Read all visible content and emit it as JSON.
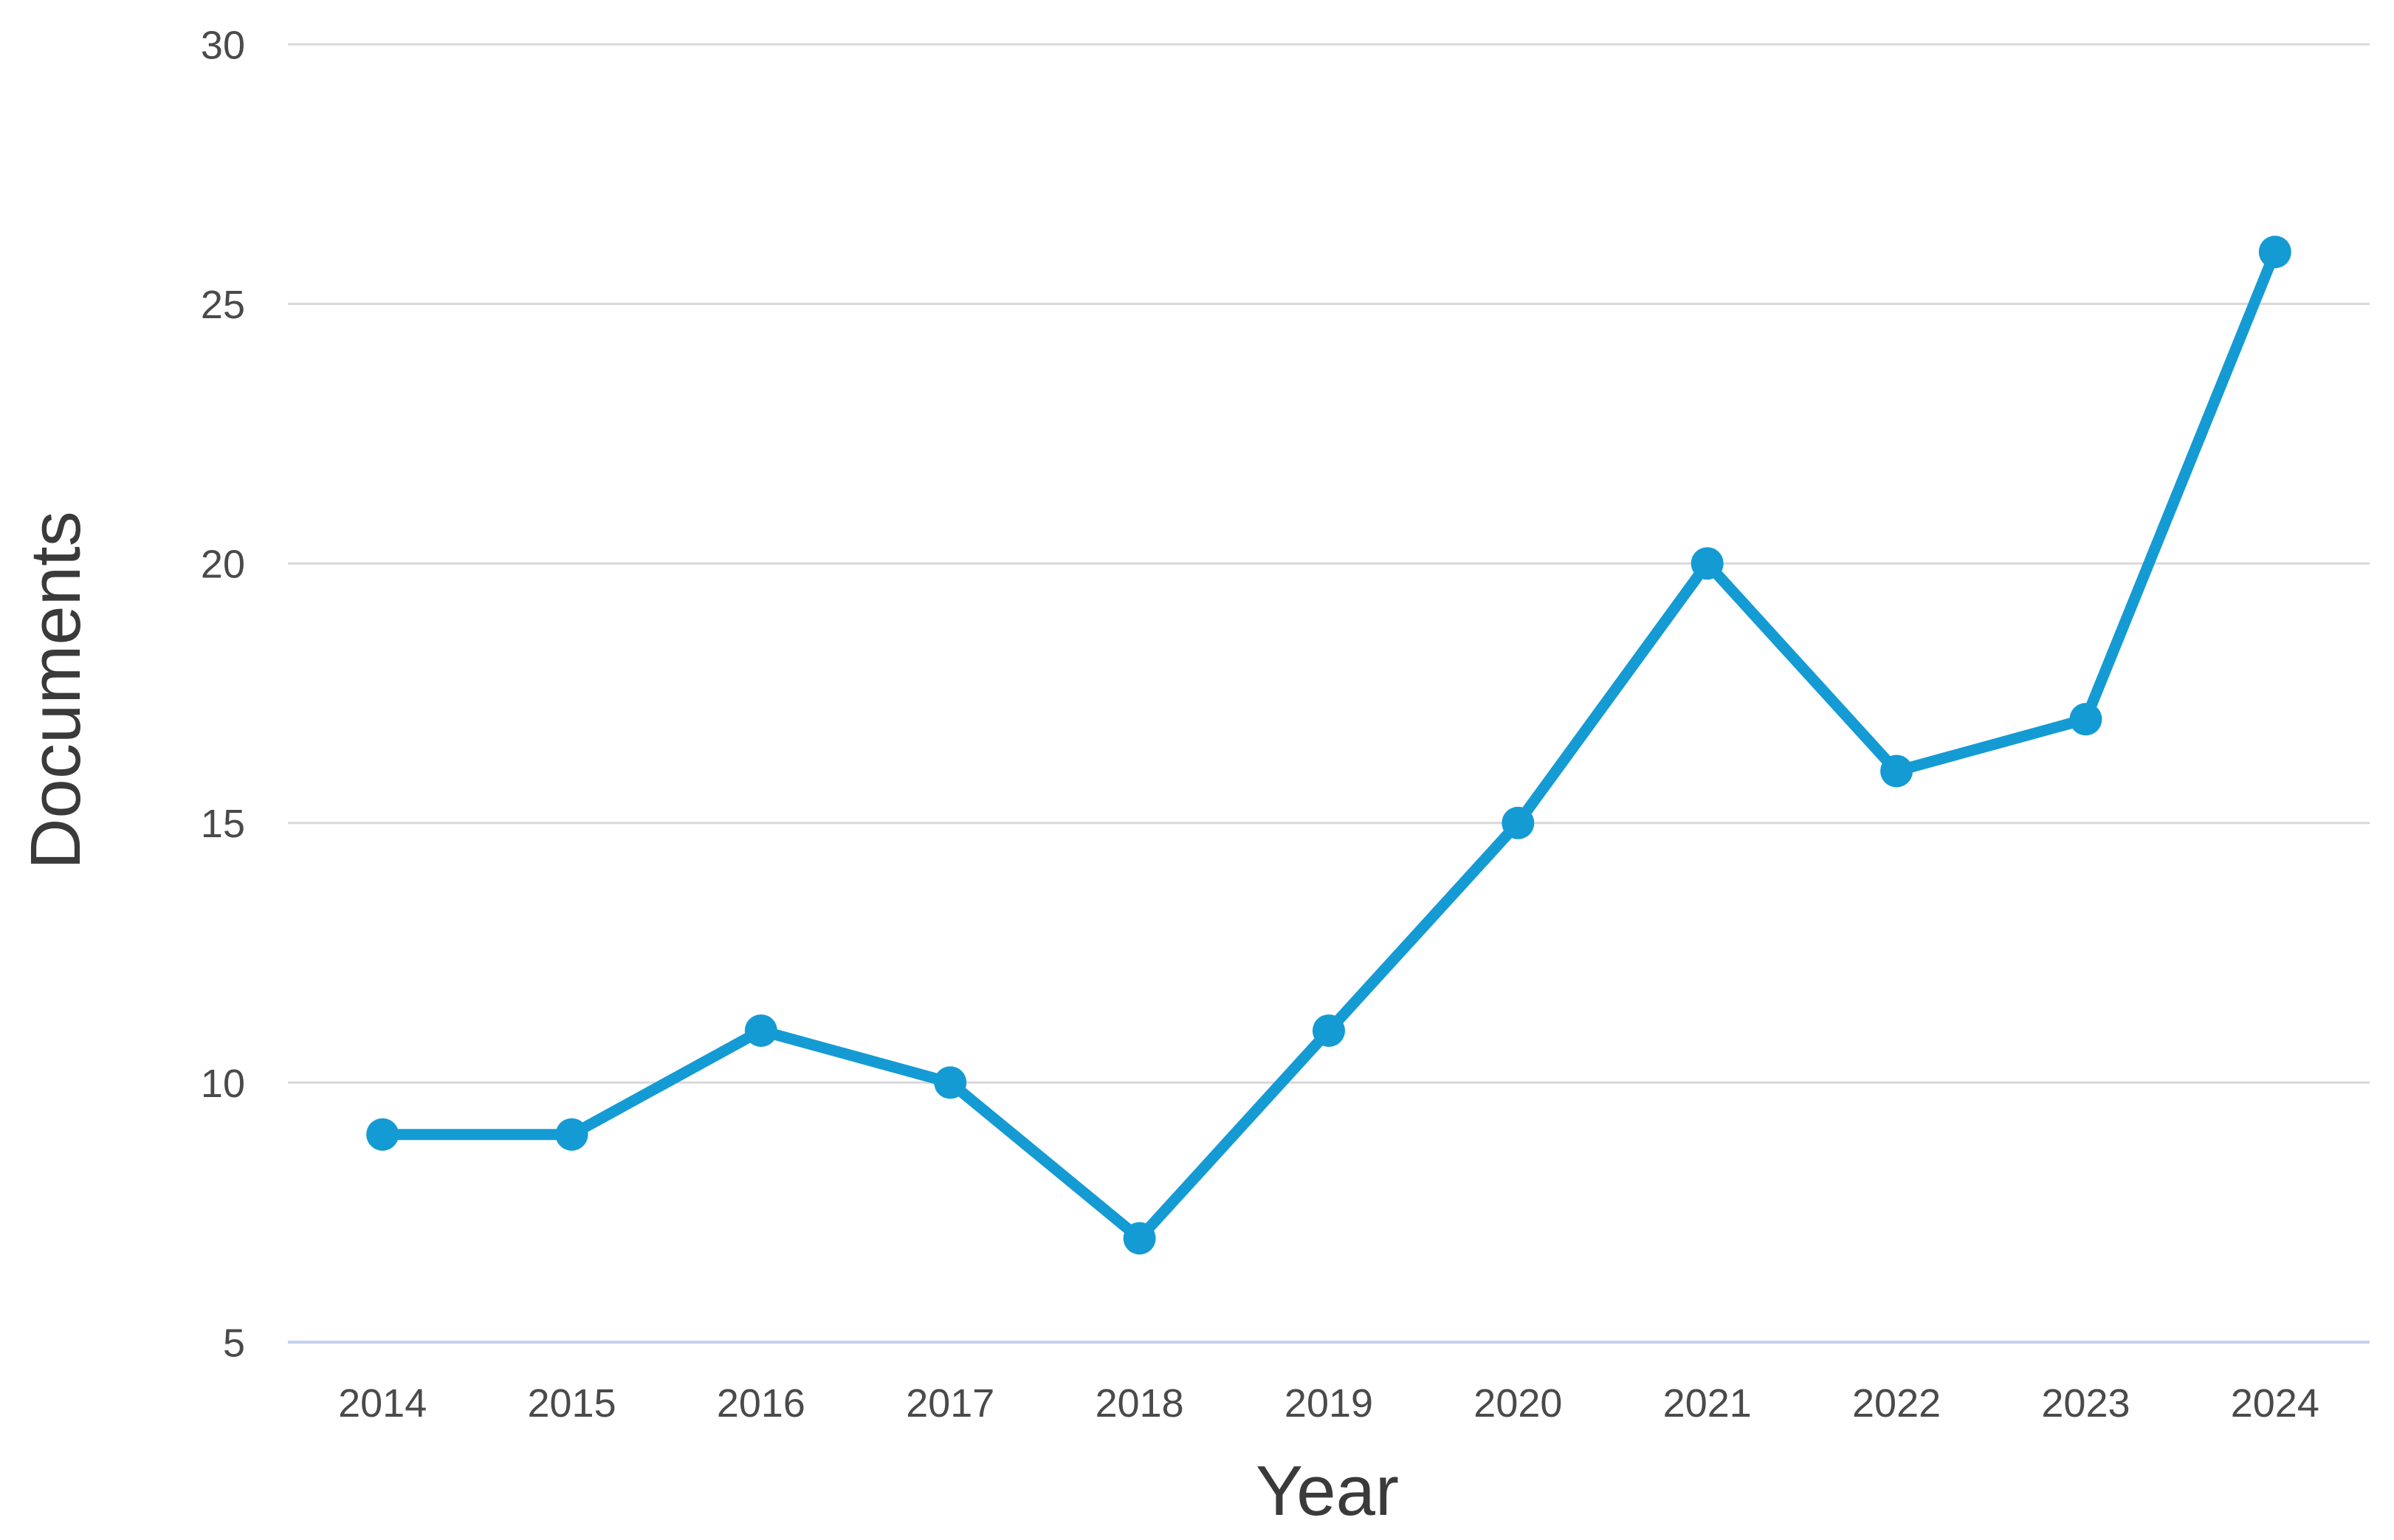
{
  "chart_data": {
    "type": "line",
    "title": "",
    "xlabel": "Year",
    "ylabel": "Documents",
    "categories": [
      "2014",
      "2015",
      "2016",
      "2017",
      "2018",
      "2019",
      "2020",
      "2021",
      "2022",
      "2023",
      "2024"
    ],
    "series": [
      {
        "name": "Documents",
        "values": [
          9,
          9,
          11,
          10,
          7,
          11,
          15,
          20,
          16,
          17,
          26
        ]
      }
    ],
    "ylim": [
      5,
      30
    ],
    "yticks": [
      5,
      10,
      15,
      20,
      25,
      30
    ],
    "grid": "horizontal-only",
    "legend": "none",
    "colors": {
      "line": "#149bd4",
      "marker": "#149bd4",
      "gridline": "#d8d8d8",
      "baseline": "#c5d2ec",
      "tick_text": "#4a4a4a",
      "axis_title_text": "#3a3a3a",
      "background": "#ffffff"
    }
  }
}
